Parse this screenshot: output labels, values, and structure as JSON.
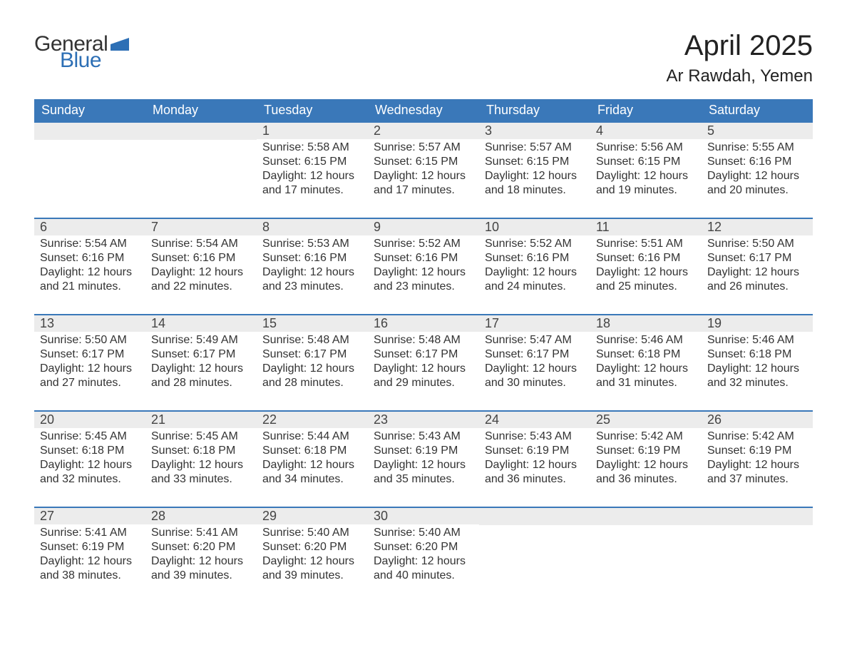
{
  "logo": {
    "word1": "General",
    "word2": "Blue",
    "icon_color": "#2d6fb5"
  },
  "title": "April 2025",
  "location": "Ar Rawdah, Yemen",
  "colors": {
    "header_bg": "#3a78b9",
    "header_text": "#ffffff",
    "daynum_bg": "#ececec",
    "row_border": "#3a78b9",
    "text": "#323232",
    "logo_blue": "#2d6fb5"
  },
  "typography": {
    "title_fontsize": 40,
    "location_fontsize": 24,
    "dayheader_fontsize": 18,
    "daynum_fontsize": 18,
    "body_fontsize": 16,
    "logo_fontsize": 30
  },
  "day_headers": [
    "Sunday",
    "Monday",
    "Tuesday",
    "Wednesday",
    "Thursday",
    "Friday",
    "Saturday"
  ],
  "weeks": [
    [
      null,
      null,
      {
        "n": "1",
        "sunrise": "Sunrise: 5:58 AM",
        "sunset": "Sunset: 6:15 PM",
        "day1": "Daylight: 12 hours",
        "day2": "and 17 minutes."
      },
      {
        "n": "2",
        "sunrise": "Sunrise: 5:57 AM",
        "sunset": "Sunset: 6:15 PM",
        "day1": "Daylight: 12 hours",
        "day2": "and 17 minutes."
      },
      {
        "n": "3",
        "sunrise": "Sunrise: 5:57 AM",
        "sunset": "Sunset: 6:15 PM",
        "day1": "Daylight: 12 hours",
        "day2": "and 18 minutes."
      },
      {
        "n": "4",
        "sunrise": "Sunrise: 5:56 AM",
        "sunset": "Sunset: 6:15 PM",
        "day1": "Daylight: 12 hours",
        "day2": "and 19 minutes."
      },
      {
        "n": "5",
        "sunrise": "Sunrise: 5:55 AM",
        "sunset": "Sunset: 6:16 PM",
        "day1": "Daylight: 12 hours",
        "day2": "and 20 minutes."
      }
    ],
    [
      {
        "n": "6",
        "sunrise": "Sunrise: 5:54 AM",
        "sunset": "Sunset: 6:16 PM",
        "day1": "Daylight: 12 hours",
        "day2": "and 21 minutes."
      },
      {
        "n": "7",
        "sunrise": "Sunrise: 5:54 AM",
        "sunset": "Sunset: 6:16 PM",
        "day1": "Daylight: 12 hours",
        "day2": "and 22 minutes."
      },
      {
        "n": "8",
        "sunrise": "Sunrise: 5:53 AM",
        "sunset": "Sunset: 6:16 PM",
        "day1": "Daylight: 12 hours",
        "day2": "and 23 minutes."
      },
      {
        "n": "9",
        "sunrise": "Sunrise: 5:52 AM",
        "sunset": "Sunset: 6:16 PM",
        "day1": "Daylight: 12 hours",
        "day2": "and 23 minutes."
      },
      {
        "n": "10",
        "sunrise": "Sunrise: 5:52 AM",
        "sunset": "Sunset: 6:16 PM",
        "day1": "Daylight: 12 hours",
        "day2": "and 24 minutes."
      },
      {
        "n": "11",
        "sunrise": "Sunrise: 5:51 AM",
        "sunset": "Sunset: 6:16 PM",
        "day1": "Daylight: 12 hours",
        "day2": "and 25 minutes."
      },
      {
        "n": "12",
        "sunrise": "Sunrise: 5:50 AM",
        "sunset": "Sunset: 6:17 PM",
        "day1": "Daylight: 12 hours",
        "day2": "and 26 minutes."
      }
    ],
    [
      {
        "n": "13",
        "sunrise": "Sunrise: 5:50 AM",
        "sunset": "Sunset: 6:17 PM",
        "day1": "Daylight: 12 hours",
        "day2": "and 27 minutes."
      },
      {
        "n": "14",
        "sunrise": "Sunrise: 5:49 AM",
        "sunset": "Sunset: 6:17 PM",
        "day1": "Daylight: 12 hours",
        "day2": "and 28 minutes."
      },
      {
        "n": "15",
        "sunrise": "Sunrise: 5:48 AM",
        "sunset": "Sunset: 6:17 PM",
        "day1": "Daylight: 12 hours",
        "day2": "and 28 minutes."
      },
      {
        "n": "16",
        "sunrise": "Sunrise: 5:48 AM",
        "sunset": "Sunset: 6:17 PM",
        "day1": "Daylight: 12 hours",
        "day2": "and 29 minutes."
      },
      {
        "n": "17",
        "sunrise": "Sunrise: 5:47 AM",
        "sunset": "Sunset: 6:17 PM",
        "day1": "Daylight: 12 hours",
        "day2": "and 30 minutes."
      },
      {
        "n": "18",
        "sunrise": "Sunrise: 5:46 AM",
        "sunset": "Sunset: 6:18 PM",
        "day1": "Daylight: 12 hours",
        "day2": "and 31 minutes."
      },
      {
        "n": "19",
        "sunrise": "Sunrise: 5:46 AM",
        "sunset": "Sunset: 6:18 PM",
        "day1": "Daylight: 12 hours",
        "day2": "and 32 minutes."
      }
    ],
    [
      {
        "n": "20",
        "sunrise": "Sunrise: 5:45 AM",
        "sunset": "Sunset: 6:18 PM",
        "day1": "Daylight: 12 hours",
        "day2": "and 32 minutes."
      },
      {
        "n": "21",
        "sunrise": "Sunrise: 5:45 AM",
        "sunset": "Sunset: 6:18 PM",
        "day1": "Daylight: 12 hours",
        "day2": "and 33 minutes."
      },
      {
        "n": "22",
        "sunrise": "Sunrise: 5:44 AM",
        "sunset": "Sunset: 6:18 PM",
        "day1": "Daylight: 12 hours",
        "day2": "and 34 minutes."
      },
      {
        "n": "23",
        "sunrise": "Sunrise: 5:43 AM",
        "sunset": "Sunset: 6:19 PM",
        "day1": "Daylight: 12 hours",
        "day2": "and 35 minutes."
      },
      {
        "n": "24",
        "sunrise": "Sunrise: 5:43 AM",
        "sunset": "Sunset: 6:19 PM",
        "day1": "Daylight: 12 hours",
        "day2": "and 36 minutes."
      },
      {
        "n": "25",
        "sunrise": "Sunrise: 5:42 AM",
        "sunset": "Sunset: 6:19 PM",
        "day1": "Daylight: 12 hours",
        "day2": "and 36 minutes."
      },
      {
        "n": "26",
        "sunrise": "Sunrise: 5:42 AM",
        "sunset": "Sunset: 6:19 PM",
        "day1": "Daylight: 12 hours",
        "day2": "and 37 minutes."
      }
    ],
    [
      {
        "n": "27",
        "sunrise": "Sunrise: 5:41 AM",
        "sunset": "Sunset: 6:19 PM",
        "day1": "Daylight: 12 hours",
        "day2": "and 38 minutes."
      },
      {
        "n": "28",
        "sunrise": "Sunrise: 5:41 AM",
        "sunset": "Sunset: 6:20 PM",
        "day1": "Daylight: 12 hours",
        "day2": "and 39 minutes."
      },
      {
        "n": "29",
        "sunrise": "Sunrise: 5:40 AM",
        "sunset": "Sunset: 6:20 PM",
        "day1": "Daylight: 12 hours",
        "day2": "and 39 minutes."
      },
      {
        "n": "30",
        "sunrise": "Sunrise: 5:40 AM",
        "sunset": "Sunset: 6:20 PM",
        "day1": "Daylight: 12 hours",
        "day2": "and 40 minutes."
      },
      null,
      null,
      null
    ]
  ]
}
